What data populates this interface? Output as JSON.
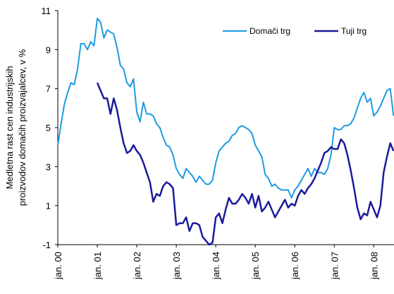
{
  "chart_data": {
    "type": "line",
    "ylabel": [
      "Medletna rast cen industrijskih",
      "proizvodov domačih proizvajalcev, v %"
    ],
    "categories": [
      "jan. 00",
      null,
      null,
      null,
      null,
      null,
      null,
      null,
      null,
      null,
      null,
      null,
      "jan. 01",
      null,
      null,
      null,
      null,
      null,
      null,
      null,
      null,
      null,
      null,
      null,
      "jan. 02",
      null,
      null,
      null,
      null,
      null,
      null,
      null,
      null,
      null,
      null,
      null,
      "jan. 03",
      null,
      null,
      null,
      null,
      null,
      null,
      null,
      null,
      null,
      null,
      null,
      "jan. 04",
      null,
      null,
      null,
      null,
      null,
      null,
      null,
      null,
      null,
      null,
      null,
      "jan. 05",
      null,
      null,
      null,
      null,
      null,
      null,
      null,
      null,
      null,
      null,
      null,
      "jan. 06",
      null,
      null,
      null,
      null,
      null,
      null,
      null,
      null,
      null,
      null,
      null,
      "jan. 07",
      null,
      null,
      null,
      null,
      null,
      null,
      null,
      null,
      null,
      null,
      null,
      "jan. 08",
      null,
      null,
      null,
      null,
      null,
      null
    ],
    "series": [
      {
        "name": "Domači trg",
        "color": "#1e9be0",
        "values": [
          4.1,
          5.2,
          6.2,
          6.8,
          7.3,
          7.2,
          8.0,
          9.3,
          9.3,
          9.0,
          9.4,
          9.2,
          10.6,
          10.4,
          9.6,
          10.0,
          9.9,
          9.8,
          9.1,
          8.2,
          8.0,
          7.3,
          7.1,
          7.5,
          5.8,
          5.3,
          6.3,
          5.7,
          5.7,
          5.6,
          5.2,
          5.0,
          4.5,
          4.1,
          4.0,
          3.6,
          2.9,
          2.6,
          2.4,
          2.9,
          2.7,
          2.5,
          2.2,
          2.5,
          2.3,
          2.1,
          2.1,
          2.3,
          3.2,
          3.8,
          4.0,
          4.2,
          4.3,
          4.6,
          4.7,
          5.0,
          5.1,
          5.0,
          4.9,
          4.7,
          4.1,
          3.8,
          3.5,
          2.6,
          2.4,
          2.0,
          2.1,
          1.9,
          1.8,
          1.8,
          1.8,
          1.4,
          1.8,
          2.0,
          2.3,
          2.6,
          2.9,
          2.5,
          2.9,
          2.7,
          2.7,
          2.6,
          2.9,
          3.6,
          5.0,
          4.9,
          4.9,
          5.1,
          5.1,
          5.2,
          5.5,
          6.0,
          6.5,
          6.8,
          6.3,
          6.5,
          5.6,
          5.8,
          6.1,
          6.5,
          6.9,
          7.0,
          5.6
        ]
      },
      {
        "name": "Tuji trg",
        "color": "#1a1a9c",
        "values": [
          null,
          null,
          null,
          null,
          null,
          null,
          null,
          null,
          null,
          null,
          null,
          null,
          7.3,
          6.9,
          6.5,
          6.5,
          5.7,
          6.5,
          5.9,
          5.0,
          4.2,
          3.7,
          3.8,
          4.1,
          3.8,
          3.6,
          3.2,
          2.7,
          2.2,
          1.2,
          1.6,
          1.5,
          2.0,
          2.2,
          2.1,
          1.9,
          0.0,
          0.1,
          0.1,
          0.4,
          -0.3,
          0.1,
          0.1,
          0.0,
          -0.6,
          -0.8,
          -1.0,
          -0.9,
          0.4,
          0.6,
          0.1,
          0.8,
          1.4,
          1.1,
          1.1,
          1.3,
          1.6,
          1.4,
          1.1,
          1.6,
          0.9,
          1.5,
          0.7,
          0.9,
          1.2,
          0.8,
          0.4,
          0.7,
          1.0,
          1.3,
          0.9,
          1.1,
          1.0,
          1.5,
          1.8,
          1.6,
          1.9,
          2.1,
          2.4,
          2.8,
          3.2,
          3.7,
          3.8,
          4.0,
          3.9,
          3.9,
          4.4,
          4.2,
          3.6,
          2.8,
          1.9,
          0.9,
          0.3,
          0.6,
          0.5,
          1.2,
          0.8,
          0.4,
          1.0,
          2.7,
          3.5,
          4.2,
          3.8
        ]
      }
    ],
    "ylim": [
      -1,
      11
    ],
    "yticks": [
      -1,
      1,
      3,
      5,
      7,
      9,
      11
    ],
    "legend": "top-right"
  }
}
